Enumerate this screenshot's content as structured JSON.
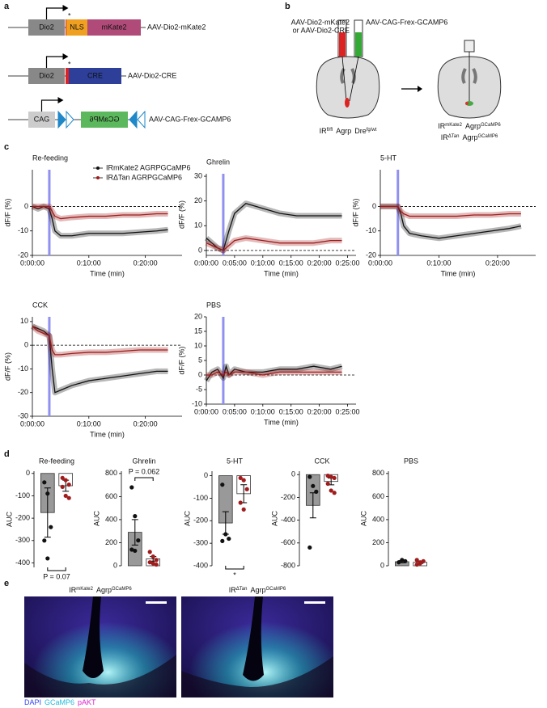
{
  "panel_labels": [
    "a",
    "b",
    "c",
    "d",
    "e"
  ],
  "panel_a": {
    "constructs": [
      {
        "promoter": "Dio2",
        "marker": "*",
        "parts": [
          "NLS",
          "mKate2"
        ],
        "name": "AAV-Dio2-mKate2"
      },
      {
        "promoter": "Dio2",
        "marker": "*",
        "parts": [
          "CRE"
        ],
        "name": "AAV-Dio2-CRE"
      },
      {
        "promoter": "CAG",
        "parts": [
          "GCaMP6"
        ],
        "name": "AAV-CAG-Frex-GCAMP6"
      }
    ]
  },
  "panel_b": {
    "syringe_left": [
      "AAV-Dio2-mKate2",
      "or AAV-Dio2-CRE"
    ],
    "syringe_right": "AAV-CAG-Frex-GCAMP6",
    "label_left": [
      {
        "t": "IR",
        "sup": "fl/fl"
      },
      {
        "t": "Agrp"
      },
      {
        "t": "Dre",
        "sup": "fg/wt"
      }
    ],
    "label_right": [
      [
        {
          "t": "IR",
          "sup": "mKate2"
        },
        {
          "t": "Agrp",
          "sup": "GCaMP6"
        }
      ],
      [
        {
          "t": "IR",
          "sup": "ΔTan"
        },
        {
          "t": "Agrp",
          "sup": "GCaMP6"
        }
      ]
    ]
  },
  "chart_data": [
    {
      "type": "line",
      "title": "Re-feeding",
      "xlabel": "Time (min)",
      "ylabel": "dF/F (%)",
      "x": [
        0,
        1,
        2,
        3,
        3.5,
        4,
        5,
        7,
        10,
        13,
        16,
        19,
        22,
        24
      ],
      "series": [
        {
          "name": "IRmKate2 AGRPGCaMP6",
          "color": "#111111",
          "values": [
            0,
            -1,
            0,
            -1,
            -5,
            -10,
            -12,
            -12,
            -11,
            -11,
            -11,
            -10.5,
            -10,
            -9.5
          ]
        },
        {
          "name": "IRΔTan AGRPGCaMP6",
          "color": "#a01c1c",
          "values": [
            0,
            0,
            0,
            0,
            -2,
            -4,
            -5,
            -4.5,
            -4,
            -4,
            -3.5,
            -3.5,
            -3,
            -3
          ]
        }
      ],
      "xlim": [
        0,
        26.5
      ],
      "xticks": [
        {
          "value": 0,
          "label": "0:00:00"
        },
        {
          "value": 10,
          "label": "0:10:00"
        },
        {
          "value": 20,
          "label": "0:20:00"
        }
      ],
      "ylim": [
        -20,
        15
      ],
      "yticks": [
        -20,
        -10,
        0
      ],
      "marker_x": 3,
      "marker_color": "#9090f0",
      "zero_line": true,
      "legend": "top"
    },
    {
      "type": "line",
      "title": "Ghrelin",
      "xlabel": "Time (min)",
      "ylabel": "dF/F (%)",
      "x": [
        0,
        1,
        2,
        3,
        3.5,
        4,
        5,
        7,
        10,
        13,
        16,
        19,
        22,
        24
      ],
      "series": [
        {
          "color": "#111111",
          "values": [
            5,
            3,
            1,
            0,
            4,
            8,
            15,
            19,
            17,
            15,
            14,
            14,
            14,
            14
          ]
        },
        {
          "color": "#a01c1c",
          "values": [
            3,
            2,
            1,
            0,
            1,
            2,
            4,
            5,
            4,
            3,
            3,
            3,
            4,
            4
          ]
        }
      ],
      "xlim": [
        0,
        26.5
      ],
      "xticks": [
        {
          "value": 0,
          "label": "0:00:00"
        },
        {
          "value": 5,
          "label": "0:05:00"
        },
        {
          "value": 10,
          "label": "0:10:00"
        },
        {
          "value": 15,
          "label": "0:15:00"
        },
        {
          "value": 20,
          "label": "0:20:00"
        },
        {
          "value": 25,
          "label": "0:25:00"
        }
      ],
      "ylim": [
        -2,
        31
      ],
      "yticks": [
        0,
        10,
        20,
        30
      ],
      "marker_x": 3,
      "marker_color": "#9090f0",
      "zero_line": true
    },
    {
      "type": "line",
      "title": "5-HT",
      "xlabel": "Time (min)",
      "ylabel": "dF/F (%)",
      "x": [
        0,
        1,
        2,
        3,
        3.5,
        4,
        5,
        7,
        10,
        13,
        16,
        19,
        22,
        24
      ],
      "series": [
        {
          "color": "#111111",
          "values": [
            0,
            0,
            0,
            0,
            -3,
            -8,
            -11,
            -12,
            -13,
            -12,
            -11,
            -10,
            -9,
            -8
          ]
        },
        {
          "color": "#a01c1c",
          "values": [
            0,
            0,
            0,
            0,
            -2,
            -3,
            -4,
            -4,
            -4,
            -4,
            -3.5,
            -3.5,
            -3,
            -3
          ]
        }
      ],
      "xlim": [
        0,
        26.5
      ],
      "xticks": [
        {
          "value": 0,
          "label": "0:00:00"
        },
        {
          "value": 10,
          "label": "0:10:00"
        },
        {
          "value": 20,
          "label": "0:20:00"
        }
      ],
      "ylim": [
        -20,
        15
      ],
      "yticks": [
        -20,
        -10,
        0
      ],
      "marker_x": 3,
      "marker_color": "#9090f0",
      "zero_line": true
    },
    {
      "type": "line",
      "title": "CCK",
      "xlabel": "Time (min)",
      "ylabel": "dF/F (%)",
      "x": [
        0,
        1,
        2,
        3,
        3.5,
        4,
        5,
        7,
        10,
        13,
        16,
        19,
        22,
        24
      ],
      "series": [
        {
          "color": "#111111",
          "values": [
            8,
            7,
            6,
            4,
            -10,
            -20,
            -19,
            -17,
            -15,
            -14,
            -13,
            -12,
            -11,
            -11
          ]
        },
        {
          "color": "#a01c1c",
          "values": [
            8,
            6,
            5,
            4,
            -2,
            -4,
            -4,
            -3.5,
            -3,
            -3,
            -2.5,
            -2,
            -2,
            -2
          ]
        }
      ],
      "xlim": [
        0,
        26.5
      ],
      "xticks": [
        {
          "value": 0,
          "label": "0:00:00"
        },
        {
          "value": 10,
          "label": "0:10:00"
        },
        {
          "value": 20,
          "label": "0:20:00"
        }
      ],
      "ylim": [
        -30,
        12
      ],
      "yticks": [
        -30,
        -20,
        -10,
        0,
        10
      ],
      "marker_x": 3,
      "marker_color": "#9090f0",
      "zero_line": true
    },
    {
      "type": "line",
      "title": "PBS",
      "xlabel": "Time (min)",
      "ylabel": "dF/F (%)",
      "x": [
        0,
        1,
        2,
        3,
        3.5,
        4,
        5,
        7,
        10,
        13,
        16,
        19,
        22,
        24
      ],
      "series": [
        {
          "color": "#111111",
          "values": [
            -2,
            1,
            2,
            -1,
            3,
            0,
            2,
            1,
            1,
            2,
            2,
            3,
            2,
            3
          ]
        },
        {
          "color": "#a01c1c",
          "values": [
            0,
            0,
            1,
            0,
            1,
            0,
            1,
            1,
            0,
            1,
            1,
            1,
            1,
            1
          ]
        }
      ],
      "xlim": [
        0,
        26.5
      ],
      "xticks": [
        {
          "value": 0,
          "label": "0:00:00"
        },
        {
          "value": 5,
          "label": "0:05:00"
        },
        {
          "value": 10,
          "label": "0:10:00"
        },
        {
          "value": 15,
          "label": "0:15:00"
        },
        {
          "value": 20,
          "label": "0:20:00"
        },
        {
          "value": 25,
          "label": "0:25:00"
        }
      ],
      "ylim": [
        -10,
        20
      ],
      "yticks": [
        -10,
        -5,
        0,
        5,
        10,
        15,
        20
      ],
      "marker_x": 3,
      "marker_color": "#9090f0",
      "zero_line": true
    },
    {
      "type": "bar",
      "title": "Re-feeding",
      "ylabel": "AUC",
      "ylim": [
        -420,
        10
      ],
      "yticks": [
        -400,
        -300,
        -200,
        -100,
        0
      ],
      "values": [
        -175,
        -55
      ],
      "errors": [
        110,
        25
      ],
      "points": [
        [
          -40,
          -90,
          -240,
          -300,
          -380
        ],
        [
          -20,
          -30,
          -50,
          -60,
          -100,
          -110
        ]
      ],
      "colors": [
        "#999999",
        "#ffffff"
      ],
      "point_colors": [
        "#111111",
        "#a01c1c"
      ],
      "annotation": "P = 0.07",
      "annotation_position": "bottom"
    },
    {
      "type": "bar",
      "title": "Ghrelin",
      "ylabel": "AUC",
      "ylim": [
        0,
        820
      ],
      "yticks": [
        0,
        200,
        400,
        600,
        800
      ],
      "values": [
        290,
        60
      ],
      "errors": [
        110,
        20
      ],
      "points": [
        [
          680,
          430,
          220,
          140,
          130
        ],
        [
          120,
          80,
          50,
          30,
          20,
          10
        ]
      ],
      "colors": [
        "#999999",
        "#ffffff"
      ],
      "point_colors": [
        "#111111",
        "#a01c1c"
      ],
      "annotation": "P = 0.062",
      "annotation_position": "top"
    },
    {
      "type": "bar",
      "title": "5-HT",
      "ylabel": "AUC",
      "ylim": [
        -400,
        20
      ],
      "yticks": [
        -400,
        -300,
        -200,
        -100,
        0
      ],
      "values": [
        -210,
        -80
      ],
      "errors": [
        50,
        40
      ],
      "points": [
        [
          -40,
          -260,
          -280,
          -290
        ],
        [
          -10,
          -20,
          -60,
          -120,
          -150
        ]
      ],
      "colors": [
        "#999999",
        "#ffffff"
      ],
      "point_colors": [
        "#111111",
        "#a01c1c"
      ],
      "annotation": "*",
      "annotation_position": "bottom"
    },
    {
      "type": "bar",
      "title": "CCK",
      "ylabel": "AUC",
      "ylim": [
        -800,
        30
      ],
      "yticks": [
        -800,
        -600,
        -400,
        -200,
        0
      ],
      "values": [
        -270,
        -60
      ],
      "errors": [
        110,
        30
      ],
      "points": [
        [
          -20,
          -100,
          -150,
          -640
        ],
        [
          -10,
          -20,
          -30,
          -80,
          -140,
          -160
        ]
      ],
      "colors": [
        "#999999",
        "#ffffff"
      ],
      "point_colors": [
        "#111111",
        "#a01c1c"
      ]
    },
    {
      "type": "bar",
      "title": "PBS",
      "ylabel": "AUC",
      "ylim": [
        0,
        820
      ],
      "yticks": [
        0,
        200,
        400,
        600,
        800
      ],
      "values": [
        35,
        30
      ],
      "errors": [
        10,
        10
      ],
      "points": [
        [
          30,
          50,
          40
        ],
        [
          10,
          20,
          40,
          50,
          30
        ]
      ],
      "colors": [
        "#999999",
        "#ffffff"
      ],
      "point_colors": [
        "#111111",
        "#a01c1c"
      ]
    }
  ],
  "panel_e": {
    "images": [
      [
        {
          "t": "IR",
          "sup": "mKate2"
        },
        {
          "t": "Agrp",
          "sup": "GCaMP6"
        }
      ],
      [
        {
          "t": "IR",
          "sup": "ΔTan"
        },
        {
          "t": "Agrp",
          "sup": "GCaMP6"
        }
      ]
    ],
    "legend": [
      "DAPI",
      "GCaMP6",
      "pAKT"
    ]
  }
}
